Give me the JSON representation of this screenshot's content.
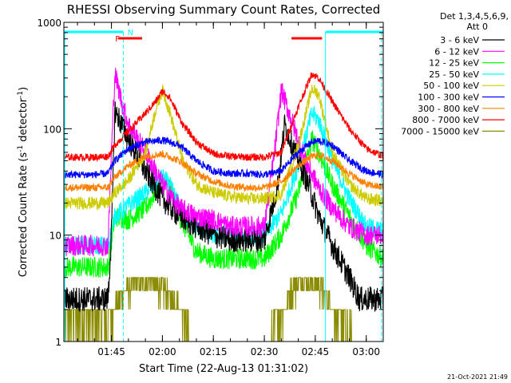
{
  "chart_data": {
    "type": "line",
    "title": "RHESSI Observing Summary Count Rates, Corrected",
    "xlabel": "Start Time (22-Aug-13 01:31:02)",
    "ylabel_main": "Corrected Count Rate (s",
    "ylabel_sup1": "-1",
    "ylabel_mid": " detector",
    "ylabel_sup2": "-1",
    "ylabel_end": ")",
    "yscale": "log",
    "ylim": [
      1,
      1000
    ],
    "xlim_min": [
      91,
      185
    ],
    "x_ticks": [
      {
        "min": 105,
        "label": "01:45"
      },
      {
        "min": 120,
        "label": "02:00"
      },
      {
        "min": 135,
        "label": "02:15"
      },
      {
        "min": 150,
        "label": "02:30"
      },
      {
        "min": 165,
        "label": "02:45"
      },
      {
        "min": 180,
        "label": "03:00"
      }
    ],
    "y_ticks": [
      {
        "value": 1,
        "label": "1"
      },
      {
        "value": 10,
        "label": "10"
      },
      {
        "value": 100,
        "label": "100"
      },
      {
        "value": 1000,
        "label": "1000"
      }
    ],
    "legend_title": [
      "Det 1,3,4,5,6,9,",
      "Att 0"
    ],
    "legend_placement": "right, outside plot",
    "grid": false,
    "series": [
      {
        "name": "3 - 6 keV",
        "color": "#000000",
        "points": [
          [
            91,
            2.5
          ],
          [
            100,
            2.5
          ],
          [
            104,
            2.5
          ],
          [
            105,
            10
          ],
          [
            106,
            150
          ],
          [
            110,
            80
          ],
          [
            115,
            40
          ],
          [
            120,
            22
          ],
          [
            125,
            15
          ],
          [
            130,
            12
          ],
          [
            135,
            10
          ],
          [
            140,
            9
          ],
          [
            145,
            9
          ],
          [
            150,
            9
          ],
          [
            154,
            30
          ],
          [
            156,
            110
          ],
          [
            159,
            60
          ],
          [
            163,
            30
          ],
          [
            166,
            15
          ],
          [
            170,
            8
          ],
          [
            175,
            4
          ],
          [
            178,
            2.5
          ],
          [
            185,
            2.5
          ]
        ]
      },
      {
        "name": "6 - 12 keV",
        "color": "#ff00ff",
        "points": [
          [
            91,
            8
          ],
          [
            100,
            8
          ],
          [
            104,
            8
          ],
          [
            105,
            60
          ],
          [
            106,
            330
          ],
          [
            108,
            180
          ],
          [
            110,
            110
          ],
          [
            115,
            60
          ],
          [
            120,
            30
          ],
          [
            125,
            18
          ],
          [
            130,
            15
          ],
          [
            135,
            14
          ],
          [
            140,
            12
          ],
          [
            145,
            12
          ],
          [
            150,
            12
          ],
          [
            153,
            60
          ],
          [
            155,
            230
          ],
          [
            158,
            120
          ],
          [
            162,
            50
          ],
          [
            166,
            28
          ],
          [
            170,
            18
          ],
          [
            175,
            12
          ],
          [
            180,
            10
          ],
          [
            185,
            10
          ]
        ]
      },
      {
        "name": "12 - 25 keV",
        "color": "#00ff00",
        "points": [
          [
            91,
            5
          ],
          [
            100,
            5
          ],
          [
            104,
            5
          ],
          [
            106,
            15
          ],
          [
            110,
            14
          ],
          [
            115,
            18
          ],
          [
            120,
            32
          ],
          [
            122,
            30
          ],
          [
            125,
            15
          ],
          [
            130,
            7
          ],
          [
            135,
            6
          ],
          [
            140,
            6
          ],
          [
            145,
            6
          ],
          [
            150,
            6
          ],
          [
            155,
            10
          ],
          [
            160,
            25
          ],
          [
            164,
            80
          ],
          [
            166,
            60
          ],
          [
            170,
            30
          ],
          [
            175,
            15
          ],
          [
            180,
            8
          ],
          [
            185,
            6
          ]
        ]
      },
      {
        "name": "25 - 50 keV",
        "color": "#00ffff",
        "points": [
          [
            91,
            8
          ],
          [
            100,
            8
          ],
          [
            104,
            8
          ],
          [
            106,
            15
          ],
          [
            110,
            19
          ],
          [
            115,
            25
          ],
          [
            120,
            35
          ],
          [
            122,
            30
          ],
          [
            126,
            16
          ],
          [
            130,
            12
          ],
          [
            135,
            10
          ],
          [
            140,
            10
          ],
          [
            145,
            10
          ],
          [
            150,
            10
          ],
          [
            155,
            16
          ],
          [
            160,
            45
          ],
          [
            164,
            140
          ],
          [
            166,
            120
          ],
          [
            170,
            50
          ],
          [
            175,
            22
          ],
          [
            180,
            12
          ],
          [
            185,
            11
          ]
        ]
      },
      {
        "name": "50 - 100 keV",
        "color": "#cccc00",
        "points": [
          [
            91,
            20
          ],
          [
            100,
            20
          ],
          [
            104,
            20
          ],
          [
            106,
            25
          ],
          [
            110,
            33
          ],
          [
            115,
            60
          ],
          [
            118,
            150
          ],
          [
            120,
            230
          ],
          [
            122,
            150
          ],
          [
            126,
            50
          ],
          [
            130,
            30
          ],
          [
            135,
            25
          ],
          [
            140,
            23
          ],
          [
            145,
            22
          ],
          [
            150,
            22
          ],
          [
            155,
            24
          ],
          [
            160,
            70
          ],
          [
            164,
            240
          ],
          [
            166,
            210
          ],
          [
            170,
            60
          ],
          [
            175,
            30
          ],
          [
            180,
            22
          ],
          [
            185,
            21
          ]
        ]
      },
      {
        "name": "100 - 300 keV",
        "color": "#0000ff",
        "points": [
          [
            91,
            37
          ],
          [
            100,
            37
          ],
          [
            104,
            38
          ],
          [
            106,
            50
          ],
          [
            110,
            65
          ],
          [
            115,
            75
          ],
          [
            120,
            78
          ],
          [
            125,
            70
          ],
          [
            130,
            50
          ],
          [
            135,
            40
          ],
          [
            140,
            38
          ],
          [
            145,
            38
          ],
          [
            150,
            37
          ],
          [
            155,
            40
          ],
          [
            160,
            60
          ],
          [
            164,
            75
          ],
          [
            166,
            77
          ],
          [
            170,
            70
          ],
          [
            175,
            50
          ],
          [
            180,
            40
          ],
          [
            185,
            37
          ]
        ]
      },
      {
        "name": "300 - 800 keV",
        "color": "#ff8000",
        "points": [
          [
            91,
            28
          ],
          [
            100,
            28
          ],
          [
            104,
            28
          ],
          [
            106,
            35
          ],
          [
            110,
            45
          ],
          [
            115,
            55
          ],
          [
            120,
            58
          ],
          [
            125,
            50
          ],
          [
            130,
            38
          ],
          [
            135,
            32
          ],
          [
            140,
            29
          ],
          [
            145,
            28
          ],
          [
            150,
            28
          ],
          [
            155,
            32
          ],
          [
            160,
            45
          ],
          [
            164,
            55
          ],
          [
            166,
            57
          ],
          [
            170,
            50
          ],
          [
            175,
            38
          ],
          [
            180,
            30
          ],
          [
            185,
            28
          ]
        ]
      },
      {
        "name": "800 - 7000 keV",
        "color": "#ff0000",
        "points": [
          [
            91,
            54
          ],
          [
            100,
            54
          ],
          [
            104,
            55
          ],
          [
            106,
            70
          ],
          [
            110,
            95
          ],
          [
            115,
            140
          ],
          [
            118,
            180
          ],
          [
            120,
            225
          ],
          [
            122,
            200
          ],
          [
            126,
            110
          ],
          [
            130,
            75
          ],
          [
            135,
            58
          ],
          [
            140,
            55
          ],
          [
            145,
            54
          ],
          [
            150,
            54
          ],
          [
            155,
            60
          ],
          [
            160,
            160
          ],
          [
            164,
            330
          ],
          [
            166,
            300
          ],
          [
            170,
            180
          ],
          [
            175,
            100
          ],
          [
            180,
            65
          ],
          [
            185,
            55
          ]
        ]
      },
      {
        "name": "7000 - 15000 keV",
        "color": "#8b8b00",
        "points": [
          [
            91,
            1.6
          ],
          [
            98,
            1.6
          ],
          [
            104,
            1.5
          ],
          [
            106,
            2
          ],
          [
            110,
            3
          ],
          [
            113,
            3.5
          ],
          [
            117,
            3.5
          ],
          [
            120,
            3
          ],
          [
            125,
            2
          ],
          [
            128,
            1.2
          ],
          [
            132,
            1
          ],
          [
            140,
            1
          ],
          [
            150,
            1
          ],
          [
            154,
            1.5
          ],
          [
            157,
            2.5
          ],
          [
            160,
            3.5
          ],
          [
            164,
            3.5
          ],
          [
            167,
            3
          ],
          [
            170,
            2
          ],
          [
            174,
            1.3
          ],
          [
            178,
            1
          ],
          [
            185,
            1
          ]
        ]
      }
    ],
    "bars_cyan": [
      [
        91,
        108.5
      ],
      [
        168,
        185
      ]
    ],
    "bars_red": [
      [
        107,
        114
      ],
      [
        158,
        167
      ]
    ],
    "cyan_vlines_min": [
      108.5,
      168,
      184.5
    ],
    "marker_F": {
      "label": "F",
      "min": 107.5
    },
    "marker_N": {
      "label": "N",
      "min": 109
    }
  },
  "timestamp": "21-Oct-2021 21:49"
}
